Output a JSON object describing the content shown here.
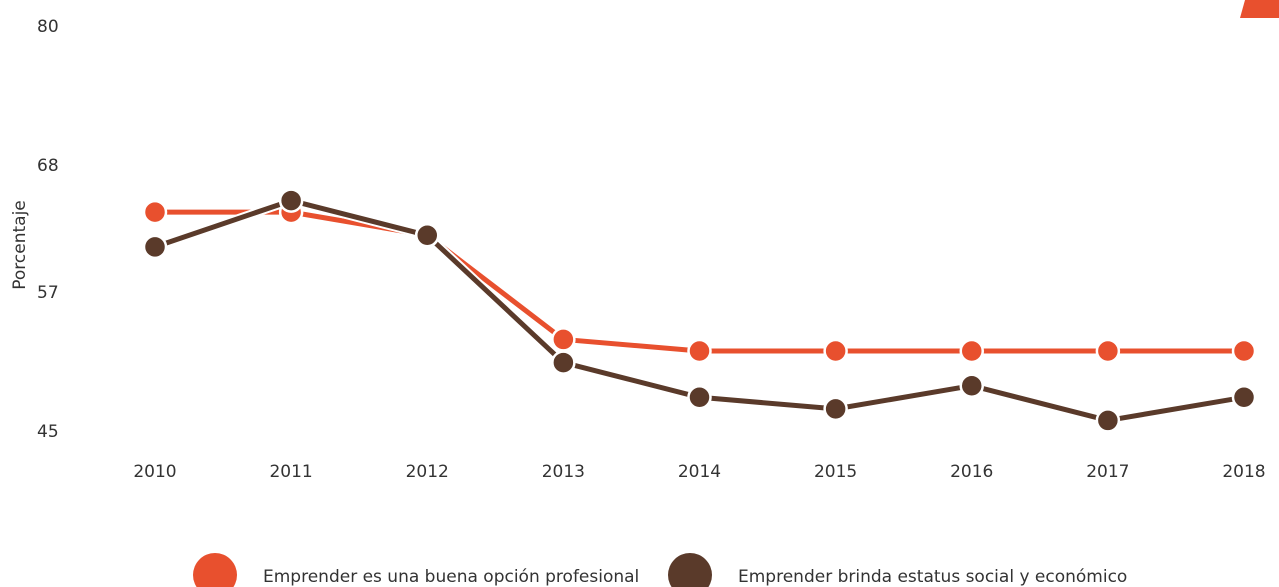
{
  "chart_data": {
    "type": "line",
    "y_label": "Porcentaje",
    "categories": [
      "2010",
      "2011",
      "2012",
      "2013",
      "2014",
      "2015",
      "2016",
      "2017",
      "2018"
    ],
    "series": [
      {
        "name": "Emprender es una buena opción profesional",
        "color": "#e8502e",
        "values": [
          64,
          64,
          62,
          53,
          52,
          52,
          52,
          52,
          52
        ]
      },
      {
        "name": "Emprender brinda estatus social y económico",
        "color": "#5a3a2a",
        "values": [
          61,
          65,
          62,
          51,
          48,
          47,
          49,
          46,
          48
        ]
      }
    ],
    "ylim": [
      45,
      80
    ],
    "yticks": [
      45,
      57,
      68,
      80
    ],
    "grid": false
  }
}
